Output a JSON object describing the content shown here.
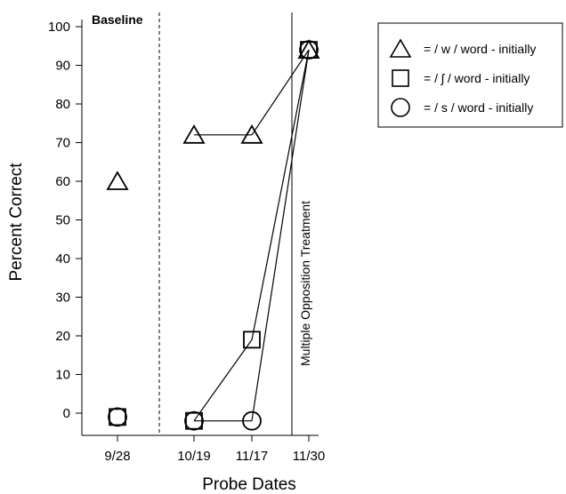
{
  "chart_data": {
    "type": "line",
    "title": "",
    "xlabel": "Probe Dates",
    "ylabel": "Percent Correct",
    "categories": [
      "9/28",
      "10/19",
      "11/17",
      "11/30"
    ],
    "ylim": [
      -5,
      100
    ],
    "yticks": [
      0,
      10,
      20,
      30,
      40,
      50,
      60,
      70,
      80,
      90,
      100
    ],
    "grid": false,
    "legend_position": "top-right",
    "series": [
      {
        "name": "= / w  / word - initially",
        "marker": "triangle",
        "values": [
          60,
          72,
          72,
          94
        ]
      },
      {
        "name": "= / ʃ / word - initially",
        "marker": "square",
        "values": [
          -1,
          -2,
          19,
          94
        ]
      },
      {
        "name": "= / s / word - initially",
        "marker": "circle",
        "values": [
          -1,
          -2,
          -2,
          94
        ]
      }
    ],
    "annotations": {
      "baseline_label": "Baseline",
      "treatment_label": "Multiple Opposition Treatment"
    },
    "connected_segments": [
      {
        "series": 0,
        "from": 1,
        "to": 2
      },
      {
        "series": 0,
        "from": 2,
        "to": 3
      },
      {
        "series": 1,
        "from": 1,
        "to": 2
      },
      {
        "series": 1,
        "from": 2,
        "to": 3
      },
      {
        "series": 2,
        "from": 1,
        "to": 2
      },
      {
        "series": 2,
        "from": 2,
        "to": 3
      }
    ]
  }
}
